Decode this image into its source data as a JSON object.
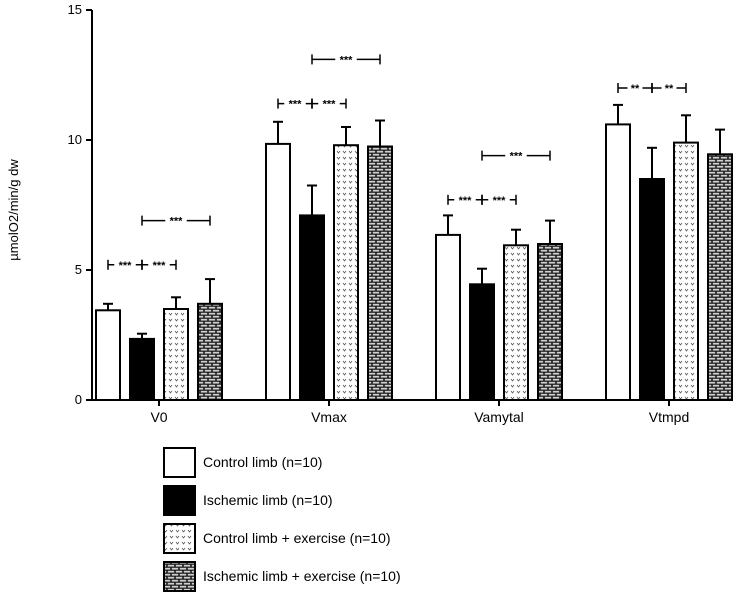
{
  "chart_data": {
    "type": "bar",
    "title": "",
    "xlabel": "",
    "ylabel": "µmolO2/min/g dw",
    "ylim": [
      0,
      15
    ],
    "yticks": [
      "0",
      "5",
      "10",
      "15"
    ],
    "categories": [
      "V0",
      "Vmax",
      "Vamytal",
      "Vtmpd"
    ],
    "series": [
      {
        "name": "Control limb (n=10)",
        "pattern": "white",
        "values": [
          3.45,
          9.85,
          6.35,
          10.6
        ],
        "errors": [
          0.25,
          0.85,
          0.75,
          0.75
        ]
      },
      {
        "name": "Ischemic limb (n=10)",
        "pattern": "black",
        "values": [
          2.35,
          7.1,
          4.45,
          8.5
        ],
        "errors": [
          0.2,
          1.15,
          0.6,
          1.2
        ]
      },
      {
        "name": "Control limb + exercise (n=10)",
        "pattern": "dots",
        "values": [
          3.5,
          9.8,
          5.95,
          9.9
        ],
        "errors": [
          0.45,
          0.7,
          0.6,
          1.05
        ]
      },
      {
        "name": "Ischemic limb + exercise (n=10)",
        "pattern": "brick",
        "values": [
          3.7,
          9.75,
          6.0,
          9.45
        ],
        "errors": [
          0.95,
          1.0,
          0.9,
          0.95
        ]
      }
    ],
    "significance": [
      {
        "category": 0,
        "from": 0,
        "to": 1,
        "label": "***",
        "level": 5.2
      },
      {
        "category": 0,
        "from": 1,
        "to": 2,
        "label": "***",
        "level": 5.2
      },
      {
        "category": 0,
        "from": 1,
        "to": 3,
        "label": "***",
        "level": 6.9
      },
      {
        "category": 1,
        "from": 0,
        "to": 1,
        "label": "***",
        "level": 11.4
      },
      {
        "category": 1,
        "from": 1,
        "to": 2,
        "label": "***",
        "level": 11.4
      },
      {
        "category": 1,
        "from": 1,
        "to": 3,
        "label": "***",
        "level": 13.1
      },
      {
        "category": 2,
        "from": 0,
        "to": 1,
        "label": "***",
        "level": 7.7
      },
      {
        "category": 2,
        "from": 1,
        "to": 2,
        "label": "***",
        "level": 7.7
      },
      {
        "category": 2,
        "from": 1,
        "to": 3,
        "label": "***",
        "level": 9.4
      },
      {
        "category": 3,
        "from": 0,
        "to": 1,
        "label": "**",
        "level": 12.0
      },
      {
        "category": 3,
        "from": 1,
        "to": 2,
        "label": "**",
        "level": 12.0
      }
    ]
  },
  "legend": {
    "items": [
      {
        "label": "Control limb (n=10)",
        "pattern": "white"
      },
      {
        "label": "Ischemic limb (n=10)",
        "pattern": "black"
      },
      {
        "label": "Control limb + exercise (n=10)",
        "pattern": "dots"
      },
      {
        "label": "Ischemic limb + exercise (n=10)",
        "pattern": "brick"
      }
    ]
  }
}
